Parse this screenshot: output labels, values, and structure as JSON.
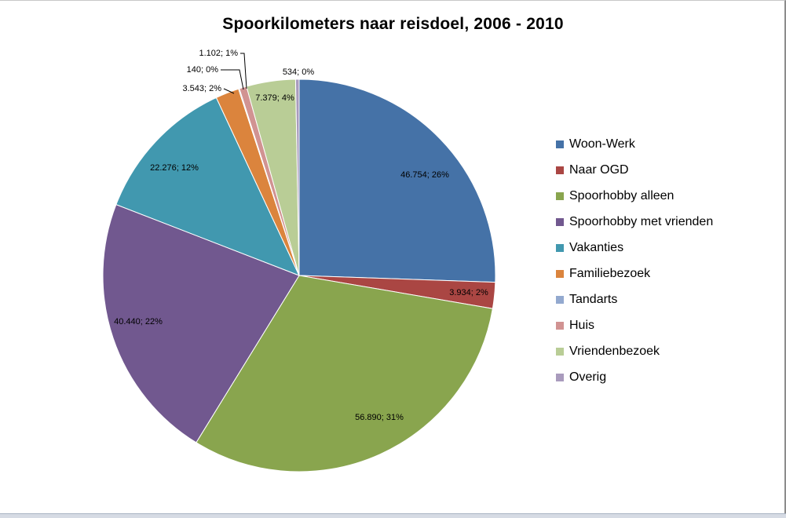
{
  "chart_data": {
    "type": "pie",
    "title": "Spoorkilometers naar reisdoel, 2006 - 2010",
    "legend_position": "right",
    "start_angle": "12 o'clock",
    "direction": "clockwise",
    "slices": [
      {
        "name": "Woon-Werk",
        "value": 46754,
        "label": "46.754; 26%",
        "color": "#4572a7"
      },
      {
        "name": "Naar OGD",
        "value": 3934,
        "label": "3.934; 2%",
        "color": "#aa4643"
      },
      {
        "name": "Spoorhobby alleen",
        "value": 56890,
        "label": "56.890; 31%",
        "color": "#89a54e"
      },
      {
        "name": "Spoorhobby met vrienden",
        "value": 40440,
        "label": "40.440; 22%",
        "color": "#71588f"
      },
      {
        "name": "Vakanties",
        "value": 22276,
        "label": "22.276; 12%",
        "color": "#4198af"
      },
      {
        "name": "Familiebezoek",
        "value": 3543,
        "label": "3.543; 2%",
        "color": "#db843d"
      },
      {
        "name": "Tandarts",
        "value": 140,
        "label": "140; 0%",
        "color": "#93a9cf"
      },
      {
        "name": "Huis",
        "value": 1102,
        "label": "1.102; 1%",
        "color": "#d19392"
      },
      {
        "name": "Vriendenbezoek",
        "value": 7379,
        "label": "7.379; 4%",
        "color": "#b9cd96"
      },
      {
        "name": "Overig",
        "value": 534,
        "label": "534; 0%",
        "color": "#a99bbd"
      }
    ]
  }
}
